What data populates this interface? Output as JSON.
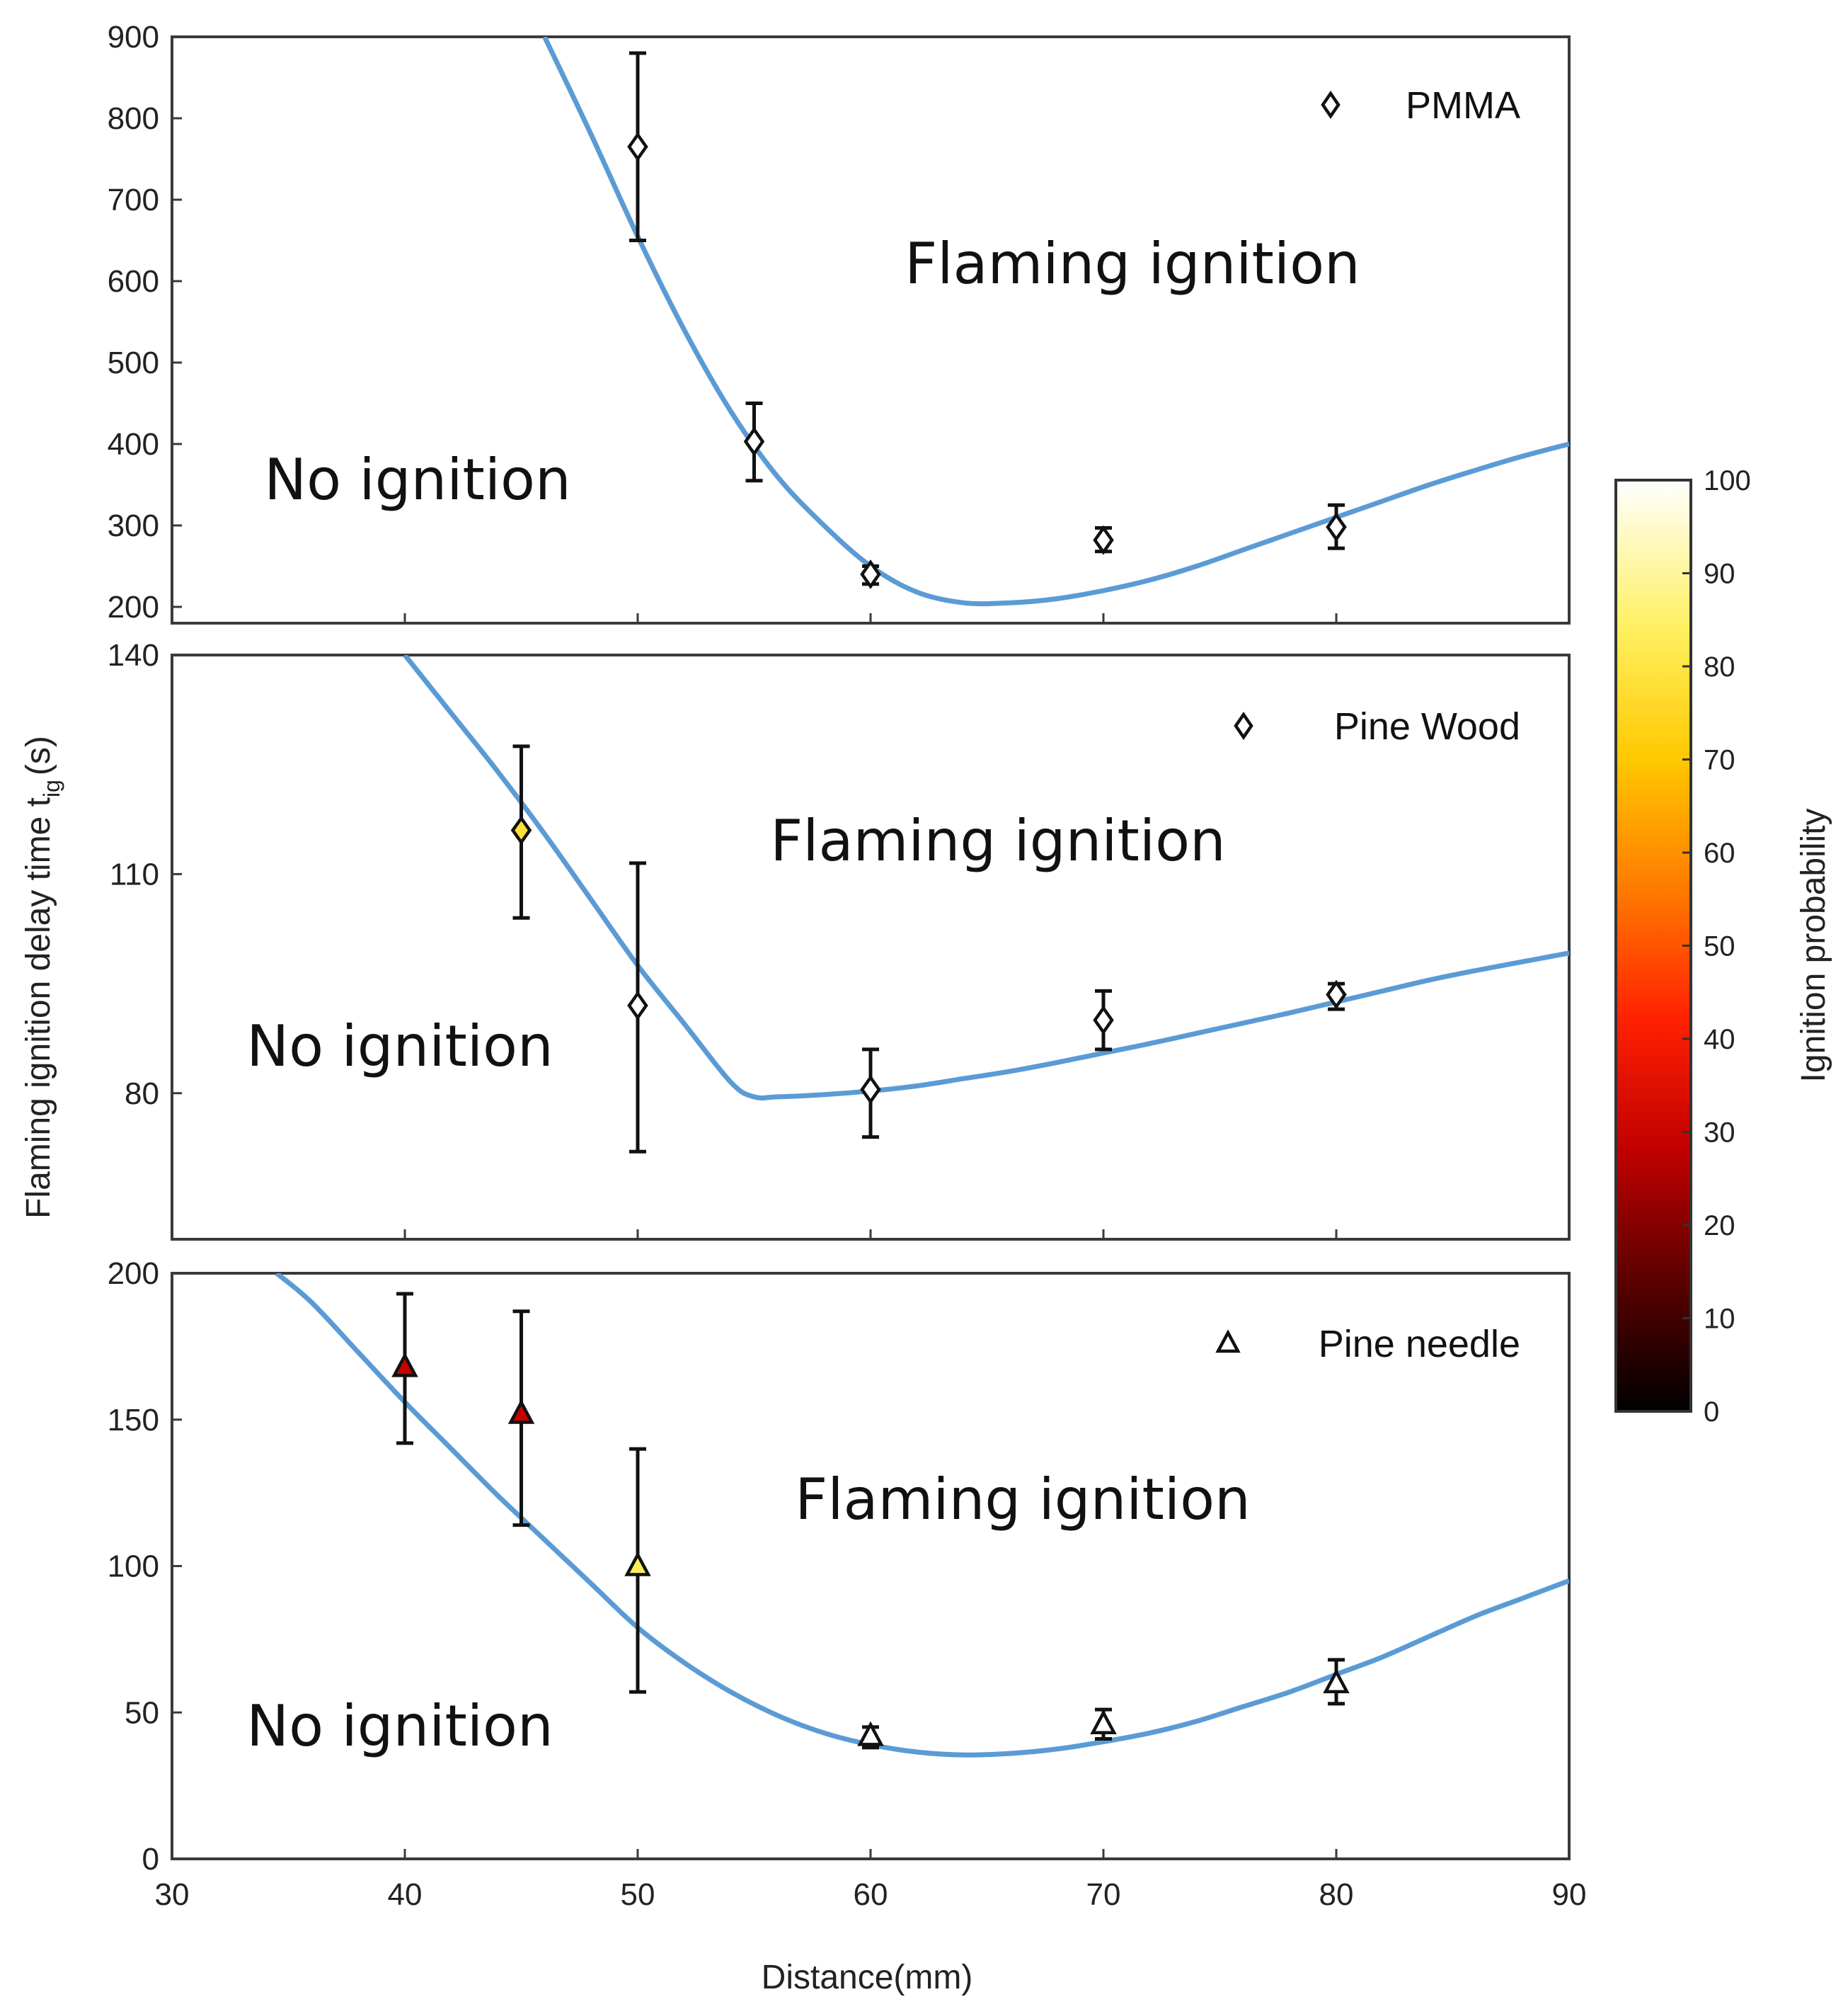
{
  "chart_data": {
    "type": "scatter",
    "xlabel": "Distance(mm)",
    "ylabel": "Flaming ignition delay time  t",
    "ylabel_sub": "ig",
    "ylabel_unit": "(s)",
    "xlim": [
      30,
      90
    ],
    "xticks": [
      30,
      40,
      50,
      60,
      70,
      80,
      90
    ],
    "colorbar": {
      "label": "Ignition probability",
      "range": [
        0,
        100
      ],
      "ticks": [
        0,
        10,
        20,
        30,
        40,
        50,
        60,
        70,
        80,
        90,
        100
      ],
      "colors": [
        "#000000",
        "#5a0000",
        "#c00000",
        "#ff2000",
        "#ff7a00",
        "#ffc800",
        "#fff060",
        "#ffffff"
      ]
    },
    "panels": [
      {
        "name": "pmma",
        "legend": "PMMA",
        "marker": "diamond",
        "ylim": [
          180,
          900
        ],
        "yticks": [
          200,
          300,
          400,
          500,
          600,
          700,
          800,
          900
        ],
        "regions": {
          "upper": "Flaming ignition",
          "lower": "No ignition"
        },
        "points": [
          {
            "x": 50,
            "y": 765,
            "err_low": 650,
            "err_high": 880,
            "prob": 100
          },
          {
            "x": 55,
            "y": 403,
            "err_low": 355,
            "err_high": 450,
            "prob": 100
          },
          {
            "x": 60,
            "y": 240,
            "err_low": 228,
            "err_high": 250,
            "prob": 100
          },
          {
            "x": 70,
            "y": 282,
            "err_low": 268,
            "err_high": 297,
            "prob": 100
          },
          {
            "x": 80,
            "y": 298,
            "err_low": 272,
            "err_high": 325,
            "prob": 100
          }
        ],
        "fit": {
          "x": [
            46,
            48,
            50,
            52,
            54,
            56,
            58,
            60,
            62,
            64,
            66,
            68,
            70,
            72,
            74,
            76,
            78,
            80,
            82,
            84,
            86,
            88,
            90
          ],
          "y": [
            900,
            780,
            655,
            540,
            440,
            360,
            300,
            250,
            218,
            205,
            205,
            210,
            220,
            233,
            250,
            270,
            290,
            310,
            330,
            350,
            368,
            385,
            400
          ]
        }
      },
      {
        "name": "pine-wood",
        "legend": "Pine Wood",
        "marker": "diamond",
        "ylim": [
          60,
          140
        ],
        "yticks": [
          80,
          110,
          140
        ],
        "regions": {
          "upper": "Flaming ignition",
          "lower": "No ignition"
        },
        "points": [
          {
            "x": 45,
            "y": 116,
            "err_low": 104,
            "err_high": 127.5,
            "prob": 80
          },
          {
            "x": 50,
            "y": 92,
            "err_low": 72,
            "err_high": 111.5,
            "prob": 100
          },
          {
            "x": 60,
            "y": 80.5,
            "err_low": 74,
            "err_high": 86,
            "prob": 100
          },
          {
            "x": 70,
            "y": 90,
            "err_low": 86,
            "err_high": 94,
            "prob": 100
          },
          {
            "x": 80,
            "y": 93.5,
            "err_low": 91.5,
            "err_high": 95,
            "prob": 100
          }
        ],
        "fit": {
          "x": [
            40,
            42,
            44,
            46,
            48,
            50,
            52,
            54,
            55,
            56,
            58,
            60,
            62,
            64,
            66,
            68,
            70,
            72,
            74,
            76,
            78,
            80,
            82,
            84,
            86,
            88,
            90
          ],
          "y": [
            140,
            132,
            124,
            115.5,
            106.5,
            97.5,
            89.5,
            81.5,
            79.5,
            79.5,
            79.8,
            80.3,
            81,
            82,
            83,
            84.2,
            85.5,
            86.8,
            88.2,
            89.6,
            91,
            92.5,
            94,
            95.5,
            96.8,
            98,
            99.2
          ]
        }
      },
      {
        "name": "pine-needle",
        "legend": "Pine needle",
        "marker": "triangle",
        "ylim": [
          0,
          200
        ],
        "yticks": [
          0,
          50,
          100,
          150,
          200
        ],
        "regions": {
          "upper": "Flaming ignition",
          "lower": "No ignition"
        },
        "points": [
          {
            "x": 40,
            "y": 168,
            "err_low": 142,
            "err_high": 193,
            "prob": 30
          },
          {
            "x": 45,
            "y": 152,
            "err_low": 114,
            "err_high": 187,
            "prob": 30
          },
          {
            "x": 50,
            "y": 100,
            "err_low": 57,
            "err_high": 140,
            "prob": 85
          },
          {
            "x": 60,
            "y": 42,
            "err_low": 38,
            "err_high": 45,
            "prob": 100
          },
          {
            "x": 70,
            "y": 46,
            "err_low": 41,
            "err_high": 51,
            "prob": 100
          },
          {
            "x": 80,
            "y": 60,
            "err_low": 53,
            "err_high": 68,
            "prob": 100
          }
        ],
        "fit": {
          "x": [
            34.5,
            36,
            38,
            40,
            42,
            44,
            46,
            48,
            50,
            52,
            54,
            56,
            58,
            60,
            62,
            64,
            66,
            68,
            70,
            72,
            74,
            76,
            78,
            80,
            82,
            84,
            86,
            88,
            90
          ],
          "y": [
            200,
            190,
            173,
            156,
            140,
            124,
            109,
            94,
            79,
            67,
            57,
            49,
            43,
            39,
            36.5,
            35.5,
            36,
            37.5,
            40,
            43,
            47,
            52,
            57,
            63,
            69,
            76,
            83,
            89,
            95
          ]
        }
      }
    ]
  }
}
